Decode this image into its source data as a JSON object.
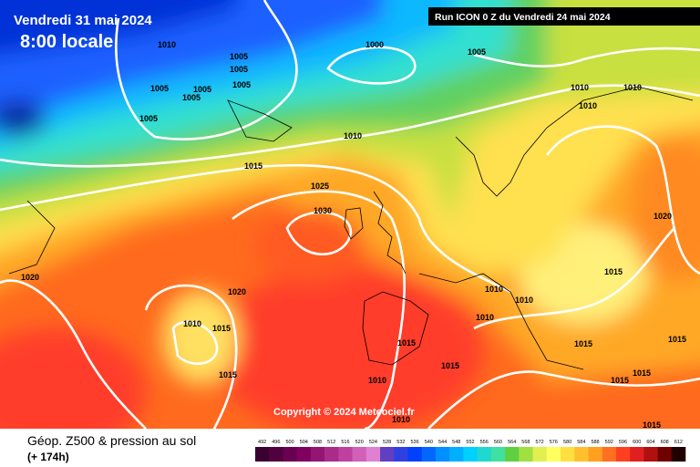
{
  "header": {
    "date": "Vendredi 31 mai 2024",
    "time": "8:00 locale",
    "run": "Run ICON 0 Z du Vendredi 24 mai 2024"
  },
  "copyright": "Copyright © 2024 Meteociel.fr",
  "footer": {
    "title": "Géop. Z500 & pression au sol",
    "lead": "(+ 174h)"
  },
  "scale": [
    492,
    496,
    500,
    504,
    508,
    512,
    516,
    520,
    524,
    528,
    532,
    536,
    540,
    544,
    548,
    552,
    556,
    560,
    564,
    568,
    572,
    576,
    580,
    584,
    588,
    592,
    596,
    600,
    604,
    608,
    612
  ],
  "isobar_labels": [
    1010,
    1005,
    1005,
    1005,
    1005,
    1005,
    1005,
    1005,
    1000,
    1005,
    1010,
    1010,
    1010,
    1010,
    1015,
    1025,
    1030,
    1020,
    1020,
    1020,
    1010,
    1015,
    1015,
    1015,
    1010,
    1010,
    1010,
    1015,
    1015,
    1010,
    1010,
    1015,
    1015,
    1015,
    1015,
    1015
  ]
}
